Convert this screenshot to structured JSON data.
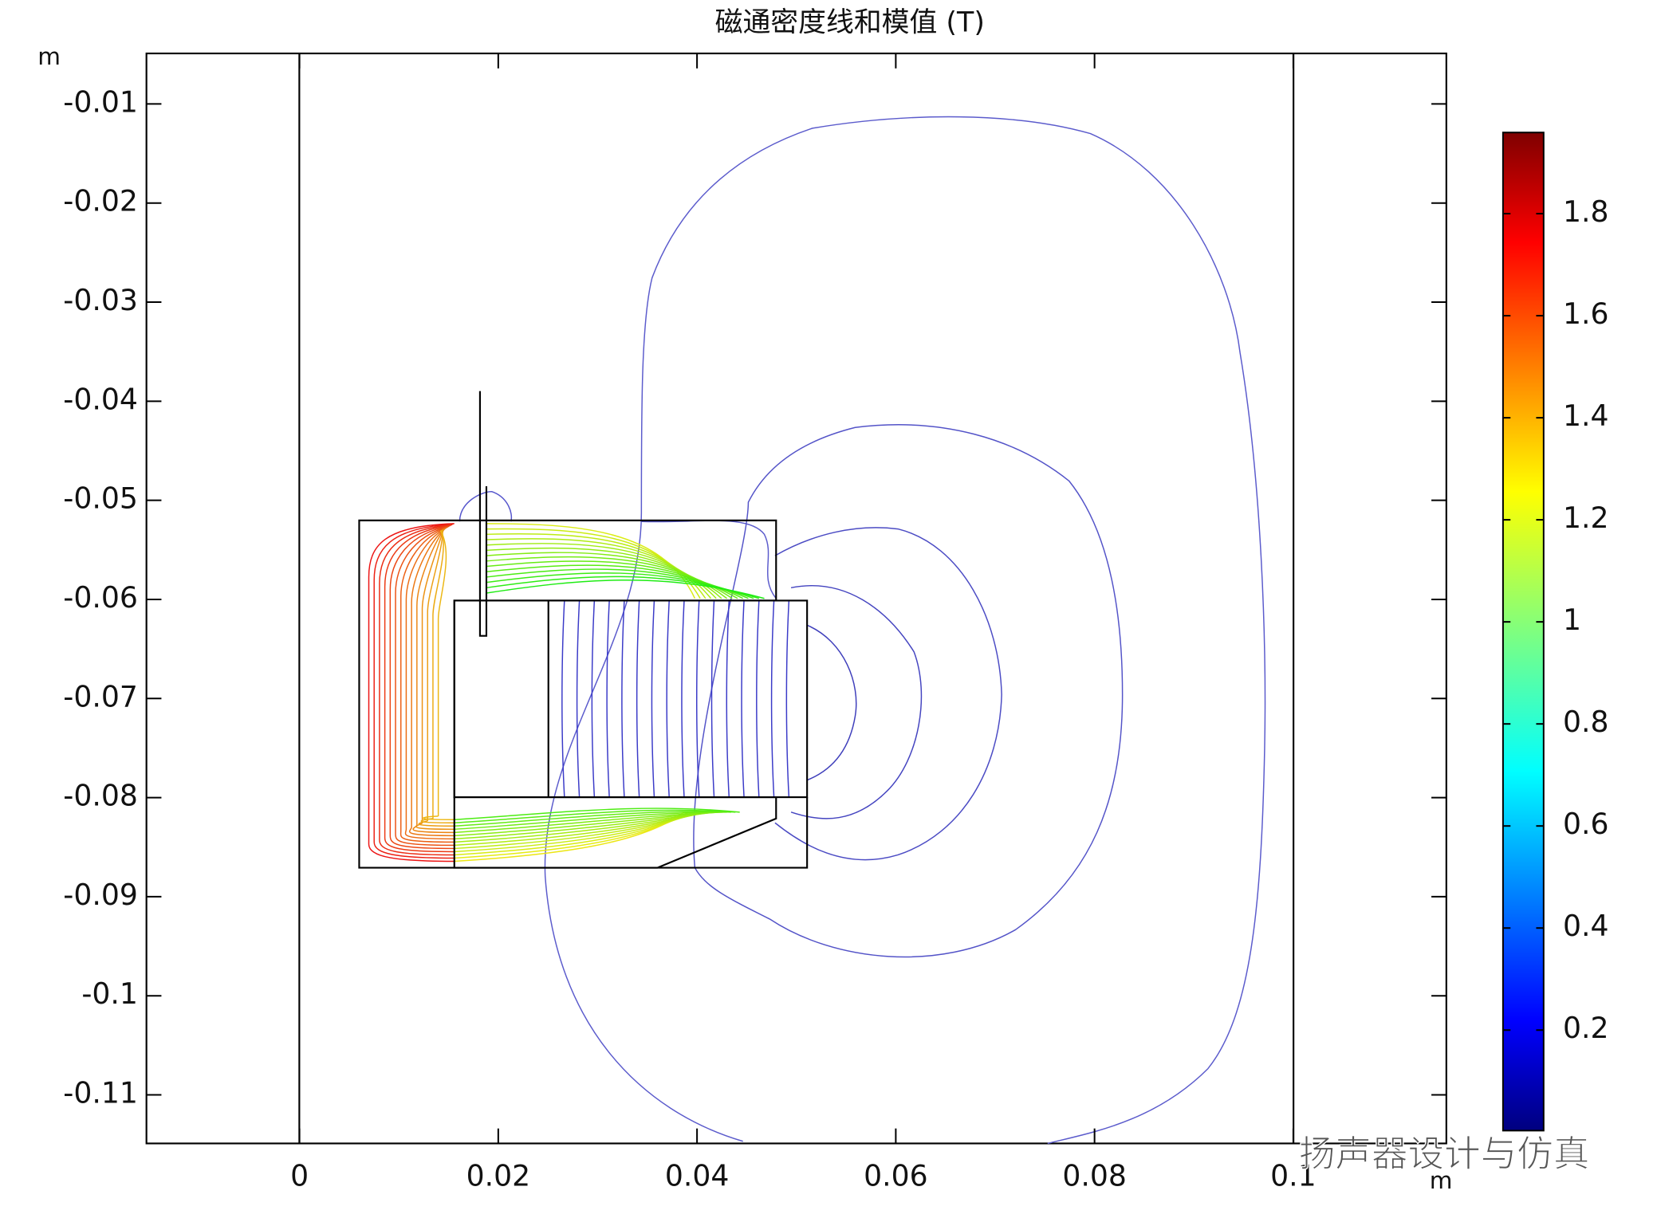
{
  "chart_data": {
    "type": "contour",
    "title": "磁通密度线和模值 (T)",
    "x_unit": "m",
    "y_unit": "m",
    "xlim": [
      -0.0154,
      0.1154
    ],
    "ylim": [
      -0.1149,
      -0.0049
    ],
    "xticks": [
      0,
      0.02,
      0.04,
      0.06,
      0.08,
      0.1
    ],
    "yticks": [
      -0.01,
      -0.02,
      -0.03,
      -0.04,
      -0.05,
      -0.06,
      -0.07,
      -0.08,
      -0.09,
      -0.1,
      -0.11
    ],
    "colorbar": {
      "lim": [
        0.003,
        1.959
      ],
      "ticks": [
        0.2,
        0.4,
        0.6,
        0.8,
        1,
        1.2,
        1.4,
        1.6,
        1.8
      ],
      "colormap": "jet"
    }
  },
  "watermark": "扬声器设计与仿真"
}
